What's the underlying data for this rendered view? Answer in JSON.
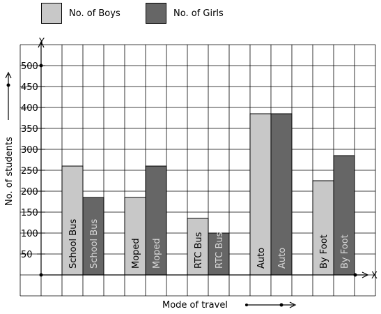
{
  "legend": [
    {
      "label": "No. of Boys",
      "color": "#c8c8c8"
    },
    {
      "label": "No. of Girls",
      "color": "#666666"
    }
  ],
  "chart_data": {
    "type": "bar",
    "categories": [
      "School Bus",
      "Moped",
      "RTC Bus",
      "Auto",
      "By Foot"
    ],
    "series": [
      {
        "name": "No. of Boys",
        "values": [
          260,
          185,
          135,
          385,
          225
        ]
      },
      {
        "name": "No. of Girls",
        "values": [
          185,
          260,
          100,
          385,
          285
        ]
      }
    ],
    "xlabel": "Mode of travel",
    "ylabel": "No. of students",
    "y_axis_name": "Y",
    "x_axis_name": "X",
    "ylim": [
      0,
      500
    ],
    "yticks": [
      50,
      100,
      150,
      200,
      250,
      300,
      350,
      400,
      450,
      500
    ],
    "ytick_labels": [
      "50",
      "100",
      "150",
      "200",
      "250",
      "300",
      "350",
      "400",
      "450",
      "500"
    ],
    "grid": true
  }
}
